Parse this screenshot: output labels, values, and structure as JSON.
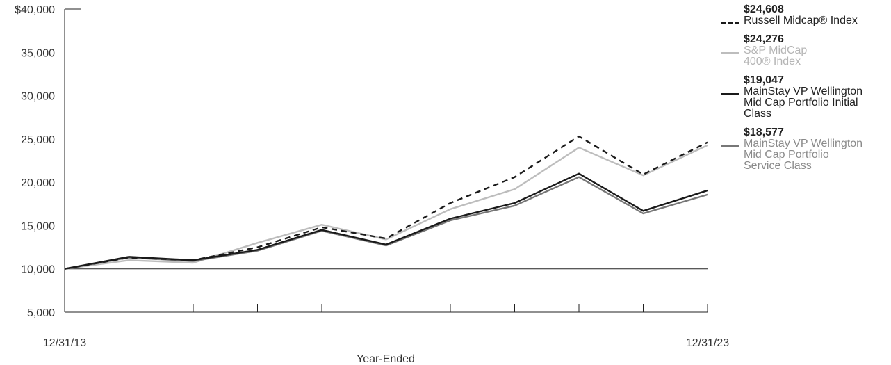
{
  "chart_data": {
    "type": "line",
    "xlabel": "Year-Ended",
    "x_tick_labels": [
      "12/31/13",
      "12/31/23"
    ],
    "x": [
      "12/31/13",
      "12/31/14",
      "12/31/15",
      "12/31/16",
      "12/31/17",
      "12/31/18",
      "12/31/19",
      "12/31/20",
      "12/31/21",
      "12/31/22",
      "12/31/23"
    ],
    "ylim": [
      5000,
      40000
    ],
    "yticks": [
      5000,
      10000,
      15000,
      20000,
      25000,
      30000,
      35000,
      40000
    ],
    "ytick_labels": [
      "5,000",
      "10,000",
      "15,000",
      "20,000",
      "25,000",
      "30,000",
      "35,000",
      "$40,000"
    ],
    "reference_line": 10000,
    "series": [
      {
        "name": "Russell Midcap® Index",
        "end_label": "$24,608",
        "color": "#1a1a1a",
        "dash": "8,6",
        "values": [
          10000,
          11300,
          11000,
          12500,
          14800,
          13500,
          17600,
          20600,
          25300,
          20900,
          24608
        ]
      },
      {
        "name": "S&P MidCap 400® Index",
        "name_lines": [
          "S&P MidCap",
          "400® Index"
        ],
        "end_label": "$24,276",
        "color": "#bdbdbd",
        "dash": "",
        "values": [
          10000,
          11000,
          10700,
          13000,
          15100,
          13400,
          16900,
          19200,
          24000,
          20800,
          24276
        ]
      },
      {
        "name": "MainStay VP Wellington Mid Cap Portfolio Initial Class",
        "name_lines": [
          "MainStay VP Wellington",
          "Mid Cap Portfolio Initial",
          "Class"
        ],
        "end_label": "$19,047",
        "color": "#1a1a1a",
        "dash": "",
        "values": [
          10000,
          11400,
          11000,
          12200,
          14500,
          12800,
          15800,
          17600,
          21000,
          16700,
          19047
        ]
      },
      {
        "name": "MainStay VP Wellington Mid Cap Portfolio Service Class",
        "name_lines": [
          "MainStay VP Wellington",
          "Mid Cap Portfolio",
          "Service Class"
        ],
        "end_label": "$18,577",
        "color": "#777777",
        "dash": "",
        "values": [
          10000,
          11300,
          10900,
          12100,
          14400,
          12700,
          15600,
          17300,
          20600,
          16400,
          18577
        ]
      }
    ]
  },
  "legend": [
    {
      "value": "$24,608",
      "name_lines": [
        "Russell Midcap® Index"
      ],
      "color": "#1a1a1a",
      "text_color": "#222222",
      "dashed": true
    },
    {
      "value": "$24,276",
      "name_lines": [
        "S&P MidCap",
        "400® Index"
      ],
      "color": "#bdbdbd",
      "text_color": "#b5b5b5",
      "dashed": false
    },
    {
      "value": "$19,047",
      "name_lines": [
        "MainStay VP Wellington",
        "Mid Cap Portfolio Initial",
        "Class"
      ],
      "color": "#1a1a1a",
      "text_color": "#222222",
      "dashed": false
    },
    {
      "value": "$18,577",
      "name_lines": [
        "MainStay VP Wellington",
        "Mid Cap Portfolio",
        "Service Class"
      ],
      "color": "#777777",
      "text_color": "#8a8a8a",
      "dashed": false
    }
  ]
}
